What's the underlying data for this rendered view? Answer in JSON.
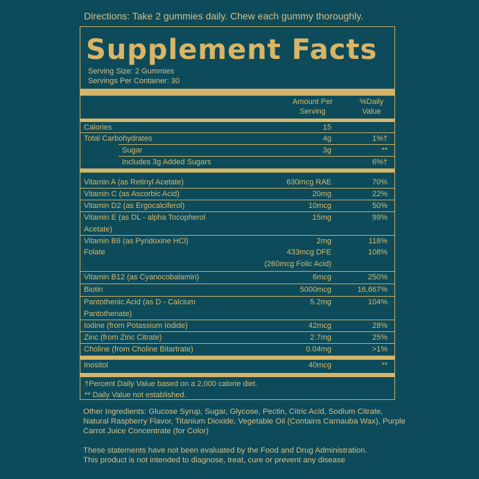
{
  "directions": "Directions: Take 2 gummies daily. Chew each gummy thoroughly.",
  "title": "Supplement Facts",
  "serving_size": "Serving Size: 2 Gummies",
  "servings_per_container": "Servings Per Container: 30",
  "header": {
    "amount_line1": "Amount Per",
    "amount_line2": "Serving",
    "dv_line1": "%Daily",
    "dv_line2": "Value"
  },
  "rows": [
    {
      "name": "Calories",
      "amount": "15",
      "dv": ""
    },
    {
      "name": "Total Carbohydrates",
      "amount": "4g",
      "dv": "1%†"
    },
    {
      "name": "Sugar",
      "amount": "3g",
      "dv": "**"
    },
    {
      "name": "Includes 3g Added Sugars",
      "amount": "",
      "dv": "6%†"
    },
    {
      "name": "Vitamin A (as Retinyl Acetate)",
      "amount": "630mcg RAE",
      "dv": "70%"
    },
    {
      "name": "Vitamin C (as Ascorbic Acid)",
      "amount": "20mg",
      "dv": "22%"
    },
    {
      "name": "Vitamin D2 (as Ergocalciferol)",
      "amount": "10mcg",
      "dv": "50%"
    },
    {
      "name": "Vitamin E (as DL - alpha Tocopherol",
      "name2": "Acetate)",
      "amount": "15mg",
      "dv": "99%"
    },
    {
      "name": "Vitamin B6 (as Pyridoxine HCl)",
      "amount": "2mg",
      "dv": "118%"
    },
    {
      "name": "Folate",
      "amount": "433mcg DFE",
      "amount2": "(260mcg Folic Acid)",
      "dv": "108%"
    },
    {
      "name": "Vitamin B12 (as Cyanocobalamin)",
      "amount": "6mcg",
      "dv": "250%"
    },
    {
      "name": "Biotin",
      "amount": "5000mcg",
      "dv": "16,667%"
    },
    {
      "name": "Pantothenic Acid (as D - Calcium",
      "name2": "Pantothenate)",
      "amount": "5.2mg",
      "dv": "104%"
    },
    {
      "name": "Iodine (from Potassium Iodide)",
      "amount": "42mcg",
      "dv": "28%"
    },
    {
      "name": "Zinc (from Zinc Citrate)",
      "amount": "2.7mg",
      "dv": "25%"
    },
    {
      "name": "Choline (from Choline Bitartrate)",
      "amount": "0.04mg",
      "dv": ">1%"
    },
    {
      "name": "Inositol",
      "amount": "40mcg",
      "dv": "**"
    }
  ],
  "footnotes": [
    "†Percent Daily Value based on a 2,000 calorie diet.",
    "** Daily Value not established."
  ],
  "other_ingredients": "Other Ingredients: Glucose Syrup, Sugar, Glycose, Pectin, Citric Acid, Sodium Citrate, Natural Raspberry Flavor, Titanium Dioxide, Vegetable Oil (Contains Carnauba Wax), Purple Carrot Juice Concentrate (for Color)",
  "disclaimer_line1": "These statements have not been evaluated by the Food and Drug Administration.",
  "disclaimer_line2": "This product is not intended to diagnose, treat, cure or prevent any disease",
  "colors": {
    "background": "#0d4b5b",
    "gold": "#d4b56a"
  }
}
